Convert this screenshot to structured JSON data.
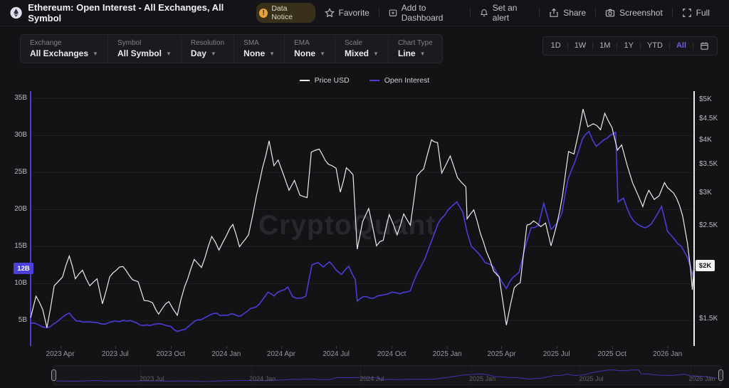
{
  "header": {
    "title": "Ethereum: Open Interest - All Exchanges, All Symbol",
    "notice_badge": "Data Notice",
    "actions": [
      {
        "label": "Favorite",
        "icon": "star-icon"
      },
      {
        "label": "Add to Dashboard",
        "icon": "dashboard-add-icon"
      },
      {
        "label": "Set an alert",
        "icon": "bell-icon"
      },
      {
        "label": "Share",
        "icon": "share-icon"
      },
      {
        "label": "Screenshot",
        "icon": "camera-icon"
      },
      {
        "label": "Full",
        "icon": "fullscreen-icon"
      }
    ]
  },
  "toolbar": {
    "dropdowns": [
      {
        "label": "Exchange",
        "value": "All Exchanges"
      },
      {
        "label": "Symbol",
        "value": "All Symbol"
      },
      {
        "label": "Resolution",
        "value": "Day"
      },
      {
        "label": "SMA",
        "value": "None"
      },
      {
        "label": "EMA",
        "value": "None"
      },
      {
        "label": "Scale",
        "value": "Mixed"
      },
      {
        "label": "Chart Type",
        "value": "Line"
      }
    ],
    "ranges": {
      "options": [
        "1D",
        "1W",
        "1M",
        "1Y",
        "YTD",
        "All"
      ],
      "selected": "All"
    }
  },
  "legend": [
    {
      "name": "Price USD",
      "color": "#ececf0"
    },
    {
      "name": "Open Interest",
      "color": "#4a3dd8"
    }
  ],
  "watermark": "CryptoQuant",
  "chart_data": {
    "type": "line",
    "title": "Ethereum: Open Interest - All Exchanges, All Symbol",
    "x_range": [
      "2023-02-11",
      "2026-02-14"
    ],
    "x_ticks": [
      {
        "label": "2023 Apr",
        "date": "2023-04-01"
      },
      {
        "label": "2023 Jul",
        "date": "2023-07-01"
      },
      {
        "label": "2023 Oct",
        "date": "2023-10-01"
      },
      {
        "label": "2024 Jan",
        "date": "2024-01-01"
      },
      {
        "label": "2024 Apr",
        "date": "2024-04-01"
      },
      {
        "label": "2024 Jul",
        "date": "2024-07-01"
      },
      {
        "label": "2024 Oct",
        "date": "2024-10-01"
      },
      {
        "label": "2025 Jan",
        "date": "2025-01-01"
      },
      {
        "label": "2025 Apr",
        "date": "2025-04-01"
      },
      {
        "label": "2025 Jul",
        "date": "2025-07-01"
      },
      {
        "label": "2025 Oct",
        "date": "2025-10-01"
      },
      {
        "label": "2026 Jan",
        "date": "2026-01-01"
      }
    ],
    "left_axis": {
      "name": "Open Interest",
      "unit": "B USD",
      "scale": "linear",
      "ticks": [
        {
          "label": "35B",
          "value": 35
        },
        {
          "label": "30B",
          "value": 30
        },
        {
          "label": "25B",
          "value": 25
        },
        {
          "label": "20B",
          "value": 20
        },
        {
          "label": "15B",
          "value": 15
        },
        {
          "label": "10B",
          "value": 10
        },
        {
          "label": "5B",
          "value": 5
        }
      ],
      "current": {
        "label": "12B",
        "value": 12
      }
    },
    "right_axis": {
      "name": "Price USD",
      "unit": "USD",
      "scale": "log",
      "ticks": [
        {
          "label": "$5K",
          "value": 5000
        },
        {
          "label": "$4.5K",
          "value": 4500
        },
        {
          "label": "$4K",
          "value": 4000
        },
        {
          "label": "$3.5K",
          "value": 3500
        },
        {
          "label": "$3K",
          "value": 3000
        },
        {
          "label": "$2.5K",
          "value": 2500
        },
        {
          "label": "$2K",
          "value": 2000
        },
        {
          "label": "$1.5K",
          "value": 1500
        }
      ],
      "current": {
        "label": "$2K",
        "value": 2010
      }
    },
    "series": [
      {
        "name": "Price USD",
        "axis": "right",
        "color": "#ececf0",
        "points": [
          [
            "2023-02-11",
            1510
          ],
          [
            "2023-02-20",
            1700
          ],
          [
            "2023-03-03",
            1580
          ],
          [
            "2023-03-10",
            1430
          ],
          [
            "2023-03-22",
            1800
          ],
          [
            "2023-04-05",
            1890
          ],
          [
            "2023-04-16",
            2120
          ],
          [
            "2023-04-26",
            1870
          ],
          [
            "2023-05-08",
            1960
          ],
          [
            "2023-05-20",
            1800
          ],
          [
            "2023-06-01",
            1870
          ],
          [
            "2023-06-10",
            1630
          ],
          [
            "2023-06-22",
            1890
          ],
          [
            "2023-07-03",
            1960
          ],
          [
            "2023-07-14",
            2000
          ],
          [
            "2023-07-30",
            1860
          ],
          [
            "2023-08-08",
            1840
          ],
          [
            "2023-08-18",
            1660
          ],
          [
            "2023-09-01",
            1640
          ],
          [
            "2023-09-11",
            1540
          ],
          [
            "2023-09-28",
            1650
          ],
          [
            "2023-10-12",
            1530
          ],
          [
            "2023-10-24",
            1790
          ],
          [
            "2023-11-09",
            2080
          ],
          [
            "2023-11-21",
            1990
          ],
          [
            "2023-12-08",
            2360
          ],
          [
            "2023-12-20",
            2190
          ],
          [
            "2024-01-02",
            2380
          ],
          [
            "2024-01-12",
            2520
          ],
          [
            "2024-01-23",
            2230
          ],
          [
            "2024-02-07",
            2380
          ],
          [
            "2024-02-20",
            2950
          ],
          [
            "2024-03-01",
            3430
          ],
          [
            "2024-03-12",
            3990
          ],
          [
            "2024-03-20",
            3480
          ],
          [
            "2024-03-27",
            3590
          ],
          [
            "2024-04-05",
            3310
          ],
          [
            "2024-04-14",
            3040
          ],
          [
            "2024-04-23",
            3210
          ],
          [
            "2024-05-02",
            2960
          ],
          [
            "2024-05-14",
            2920
          ],
          [
            "2024-05-21",
            3750
          ],
          [
            "2024-06-03",
            3810
          ],
          [
            "2024-06-18",
            3510
          ],
          [
            "2024-07-01",
            3430
          ],
          [
            "2024-07-08",
            3010
          ],
          [
            "2024-07-18",
            3440
          ],
          [
            "2024-07-29",
            3310
          ],
          [
            "2024-08-05",
            2200
          ],
          [
            "2024-08-14",
            2560
          ],
          [
            "2024-08-24",
            2750
          ],
          [
            "2024-09-06",
            2240
          ],
          [
            "2024-09-17",
            2310
          ],
          [
            "2024-09-27",
            2660
          ],
          [
            "2024-10-10",
            2380
          ],
          [
            "2024-10-21",
            2670
          ],
          [
            "2024-11-01",
            2510
          ],
          [
            "2024-11-12",
            3290
          ],
          [
            "2024-11-23",
            3420
          ],
          [
            "2024-12-06",
            4010
          ],
          [
            "2024-12-16",
            3950
          ],
          [
            "2024-12-23",
            3340
          ],
          [
            "2025-01-06",
            3670
          ],
          [
            "2025-01-18",
            3260
          ],
          [
            "2025-02-01",
            3100
          ],
          [
            "2025-02-03",
            2600
          ],
          [
            "2025-02-14",
            2730
          ],
          [
            "2025-02-25",
            2400
          ],
          [
            "2025-03-07",
            2170
          ],
          [
            "2025-03-19",
            1950
          ],
          [
            "2025-03-28",
            1890
          ],
          [
            "2025-04-09",
            1450
          ],
          [
            "2025-04-22",
            1780
          ],
          [
            "2025-05-02",
            1830
          ],
          [
            "2025-05-13",
            2510
          ],
          [
            "2025-05-24",
            2570
          ],
          [
            "2025-06-05",
            2490
          ],
          [
            "2025-06-13",
            2540
          ],
          [
            "2025-06-22",
            2240
          ],
          [
            "2025-07-01",
            2500
          ],
          [
            "2025-07-11",
            2950
          ],
          [
            "2025-07-21",
            3760
          ],
          [
            "2025-07-30",
            3710
          ],
          [
            "2025-08-08",
            4260
          ],
          [
            "2025-08-14",
            4750
          ],
          [
            "2025-08-22",
            4310
          ],
          [
            "2025-08-31",
            4380
          ],
          [
            "2025-09-12",
            4240
          ],
          [
            "2025-09-19",
            4640
          ],
          [
            "2025-10-01",
            4290
          ],
          [
            "2025-10-10",
            3790
          ],
          [
            "2025-10-17",
            3900
          ],
          [
            "2025-10-26",
            3490
          ],
          [
            "2025-11-04",
            3170
          ],
          [
            "2025-11-14",
            2940
          ],
          [
            "2025-11-21",
            2780
          ],
          [
            "2025-12-01",
            3040
          ],
          [
            "2025-12-10",
            2890
          ],
          [
            "2025-12-18",
            2950
          ],
          [
            "2025-12-27",
            3170
          ],
          [
            "2026-01-06",
            3040
          ],
          [
            "2026-01-16",
            2910
          ],
          [
            "2026-01-26",
            2640
          ],
          [
            "2026-02-03",
            2270
          ],
          [
            "2026-02-08",
            1980
          ],
          [
            "2026-02-11",
            1760
          ],
          [
            "2026-02-14",
            2010
          ]
        ]
      },
      {
        "name": "Open Interest",
        "axis": "left",
        "color": "#4a3dd8",
        "points": [
          [
            "2023-02-11",
            4.6
          ],
          [
            "2023-02-24",
            4.4
          ],
          [
            "2023-03-10",
            4.0
          ],
          [
            "2023-03-25",
            4.7
          ],
          [
            "2023-04-16",
            6.0
          ],
          [
            "2023-04-28",
            4.9
          ],
          [
            "2023-05-15",
            4.8
          ],
          [
            "2023-06-01",
            4.7
          ],
          [
            "2023-06-15",
            4.5
          ],
          [
            "2023-07-01",
            4.9
          ],
          [
            "2023-07-15",
            5.0
          ],
          [
            "2023-08-01",
            4.8
          ],
          [
            "2023-08-17",
            4.3
          ],
          [
            "2023-09-01",
            4.4
          ],
          [
            "2023-09-20",
            4.4
          ],
          [
            "2023-10-01",
            4.2
          ],
          [
            "2023-10-12",
            3.5
          ],
          [
            "2023-10-25",
            3.8
          ],
          [
            "2023-11-10",
            4.9
          ],
          [
            "2023-11-25",
            5.3
          ],
          [
            "2023-12-10",
            5.9
          ],
          [
            "2023-12-28",
            5.7
          ],
          [
            "2024-01-10",
            5.9
          ],
          [
            "2024-01-25",
            5.6
          ],
          [
            "2024-02-10",
            6.6
          ],
          [
            "2024-02-25",
            7.2
          ],
          [
            "2024-03-10",
            8.8
          ],
          [
            "2024-03-20",
            8.3
          ],
          [
            "2024-04-01",
            9.0
          ],
          [
            "2024-04-12",
            9.5
          ],
          [
            "2024-04-20",
            8.2
          ],
          [
            "2024-05-01",
            8.0
          ],
          [
            "2024-05-12",
            8.3
          ],
          [
            "2024-05-22",
            12.5
          ],
          [
            "2024-06-01",
            12.8
          ],
          [
            "2024-06-10",
            12.2
          ],
          [
            "2024-06-20",
            12.9
          ],
          [
            "2024-07-01",
            11.8
          ],
          [
            "2024-07-10",
            11.2
          ],
          [
            "2024-07-22",
            12.3
          ],
          [
            "2024-08-02",
            10.5
          ],
          [
            "2024-08-05",
            7.6
          ],
          [
            "2024-08-15",
            8.2
          ],
          [
            "2024-09-01",
            8.0
          ],
          [
            "2024-09-15",
            8.4
          ],
          [
            "2024-10-01",
            8.8
          ],
          [
            "2024-10-15",
            8.6
          ],
          [
            "2024-11-01",
            9.0
          ],
          [
            "2024-11-12",
            11.3
          ],
          [
            "2024-11-25",
            13.3
          ],
          [
            "2024-12-05",
            15.5
          ],
          [
            "2024-12-17",
            18.1
          ],
          [
            "2024-12-28",
            19.2
          ],
          [
            "2025-01-07",
            20.3
          ],
          [
            "2025-01-17",
            21.0
          ],
          [
            "2025-01-27",
            19.6
          ],
          [
            "2025-02-03",
            16.9
          ],
          [
            "2025-02-10",
            15.0
          ],
          [
            "2025-02-20",
            14.2
          ],
          [
            "2025-03-05",
            12.8
          ],
          [
            "2025-03-18",
            12.3
          ],
          [
            "2025-04-01",
            10.3
          ],
          [
            "2025-04-09",
            9.3
          ],
          [
            "2025-04-20",
            10.8
          ],
          [
            "2025-04-30",
            11.5
          ],
          [
            "2025-05-09",
            14.5
          ],
          [
            "2025-05-20",
            17.5
          ],
          [
            "2025-06-01",
            17.8
          ],
          [
            "2025-06-10",
            20.8
          ],
          [
            "2025-06-22",
            17.3
          ],
          [
            "2025-07-01",
            18.0
          ],
          [
            "2025-07-10",
            19.5
          ],
          [
            "2025-07-20",
            24.0
          ],
          [
            "2025-08-01",
            26.5
          ],
          [
            "2025-08-13",
            29.5
          ],
          [
            "2025-08-24",
            30.5
          ],
          [
            "2025-09-05",
            28.5
          ],
          [
            "2025-09-18",
            29.4
          ],
          [
            "2025-09-28",
            30.0
          ],
          [
            "2025-10-07",
            30.4
          ],
          [
            "2025-10-11",
            21.0
          ],
          [
            "2025-10-20",
            21.5
          ],
          [
            "2025-11-01",
            19.0
          ],
          [
            "2025-11-12",
            18.0
          ],
          [
            "2025-11-25",
            17.5
          ],
          [
            "2025-12-05",
            18.0
          ],
          [
            "2025-12-22",
            20.4
          ],
          [
            "2026-01-01",
            17.0
          ],
          [
            "2026-01-12",
            16.0
          ],
          [
            "2026-01-24",
            15.0
          ],
          [
            "2026-02-03",
            13.5
          ],
          [
            "2026-02-08",
            12.2
          ],
          [
            "2026-02-11",
            11.2
          ],
          [
            "2026-02-14",
            12.0
          ]
        ]
      }
    ],
    "navigator": {
      "ticks": [
        {
          "label": "2023 Jul",
          "date": "2023-07-01"
        },
        {
          "label": "2024 Jan",
          "date": "2024-01-01"
        },
        {
          "label": "2024 Jul",
          "date": "2024-07-01"
        },
        {
          "label": "2025 Jan",
          "date": "2025-01-01"
        },
        {
          "label": "2025 Jul",
          "date": "2025-07-01"
        },
        {
          "label": "2026 Jan",
          "date": "2026-01-01"
        }
      ]
    }
  }
}
